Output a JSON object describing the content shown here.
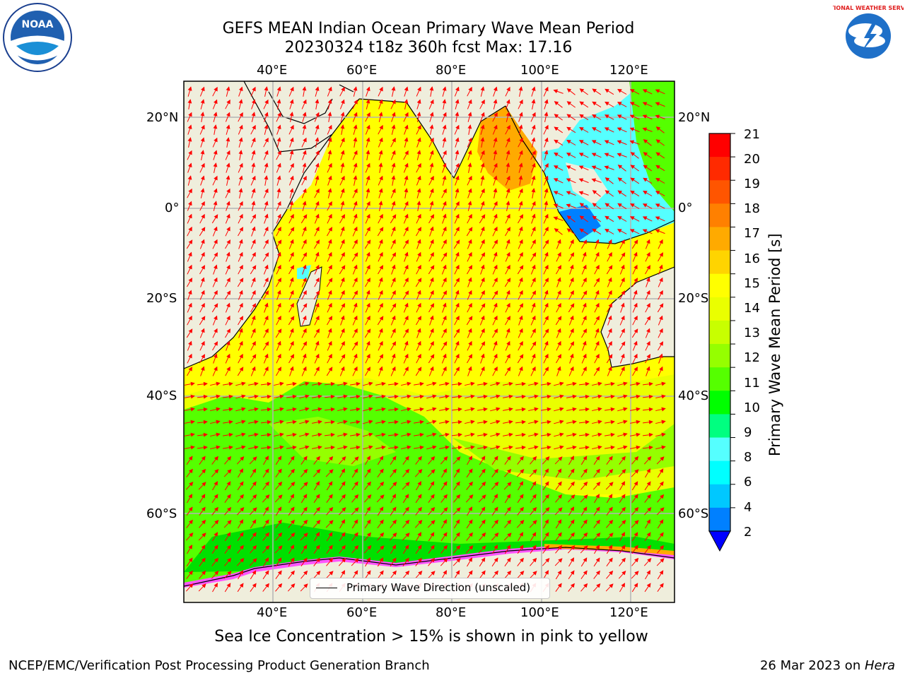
{
  "title": {
    "line1": "GEFS MEAN Indian Ocean Primary Wave Mean Period",
    "line2": "20230324 t18z 360h fcst   Max: 17.16"
  },
  "axes": {
    "top_lon_labels": [
      "40°E",
      "60°E",
      "80°E",
      "100°E",
      "120°E"
    ],
    "bottom_lon_labels": [
      "40°E",
      "60°E",
      "80°E",
      "100°E",
      "120°E"
    ],
    "left_lat_labels": [
      "20°N",
      "0°",
      "20°S",
      "40°S",
      "60°S"
    ],
    "right_lat_labels": [
      "20°N",
      "0°",
      "20°S",
      "40°S",
      "60°S"
    ],
    "lon_range": [
      20,
      130
    ],
    "lat_range": [
      -70,
      28
    ]
  },
  "legend": {
    "label": "Primary Wave Direction (unscaled)"
  },
  "colorbar": {
    "label": "Primary Wave Mean Period [s]",
    "ticks": [
      "21",
      "20",
      "19",
      "18",
      "17",
      "16",
      "15",
      "14",
      "13",
      "12",
      "11",
      "10",
      "9",
      "8",
      "6",
      "4",
      "2"
    ],
    "colors": [
      "#ff0000",
      "#ff2a00",
      "#ff5500",
      "#ff8000",
      "#ffaa00",
      "#ffd400",
      "#ffff00",
      "#eaff00",
      "#c8ff00",
      "#95ff00",
      "#55ff00",
      "#00ff00",
      "#00ff80",
      "#55ffff",
      "#00ffff",
      "#00c8ff",
      "#0080ff"
    ],
    "extend_color": "#0000ff"
  },
  "caption": "Sea Ice Concentration > 15% is shown in pink to yellow",
  "footer": {
    "left": "NCEP/EMC/Verification Post Processing Product Generation Branch",
    "right_date": "26 Mar 2023 on ",
    "right_host": "Hera"
  },
  "logos": {
    "noaa": "NOAA",
    "nws": "NATIONAL WEATHER SERVICE"
  },
  "colors": {
    "land": "#efeedc",
    "arrow": "#ff0000",
    "grid": "#b4b4b4"
  }
}
